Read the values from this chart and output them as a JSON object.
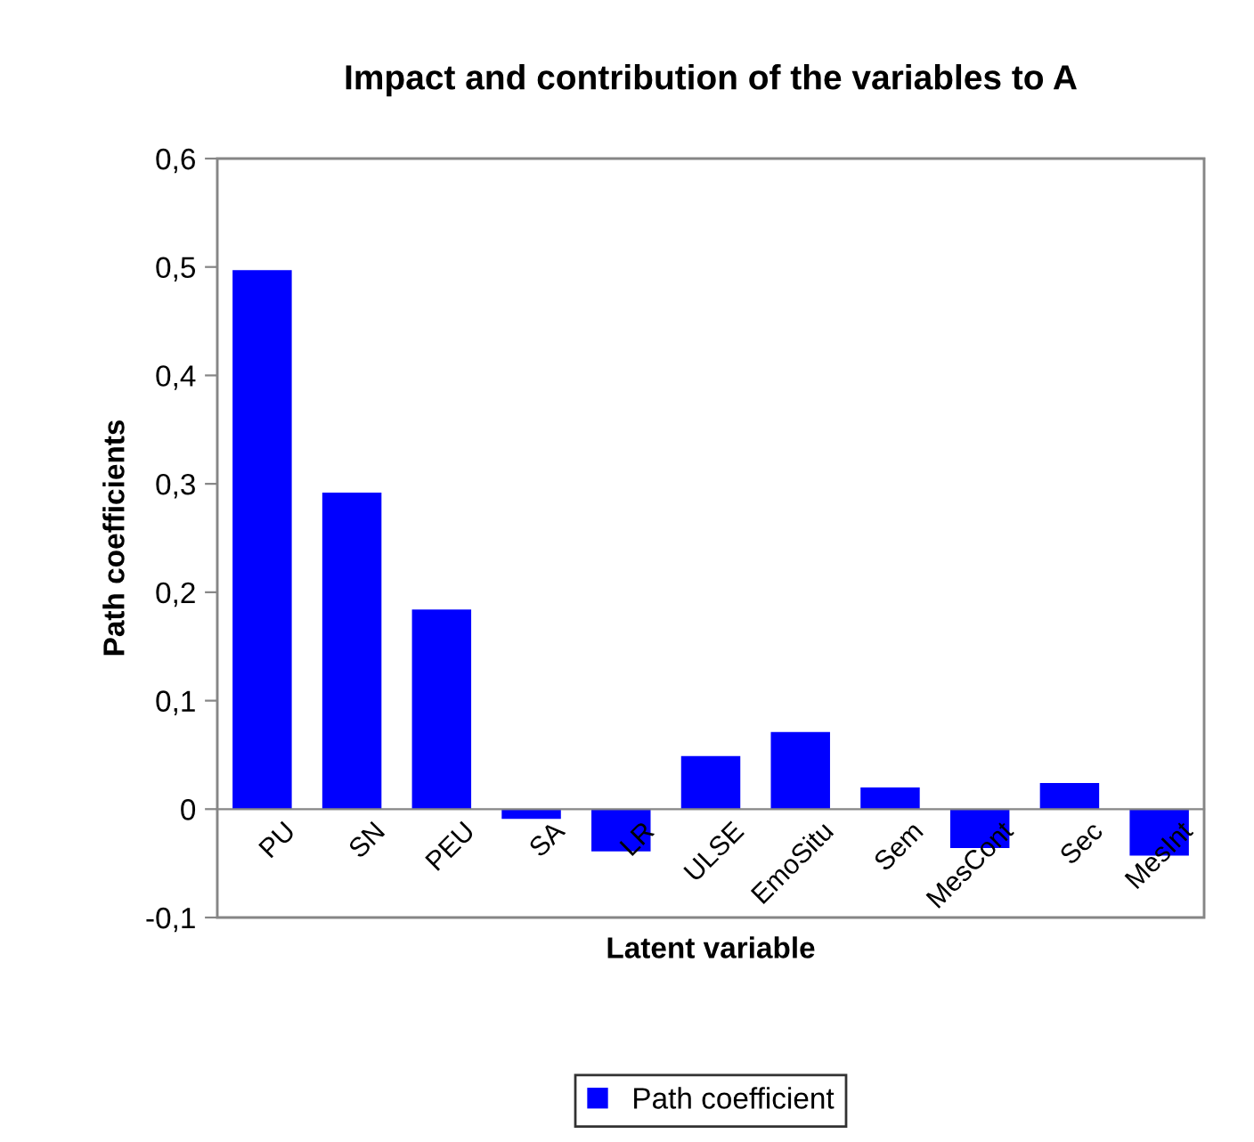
{
  "chart_data": {
    "type": "bar",
    "title": "Impact and contribution of the variables to A",
    "xlabel": "Latent variable",
    "ylabel": "Path coefficients",
    "categories": [
      "PU",
      "SN",
      "PEU",
      "SA",
      "LR",
      "ULSE",
      "EmoSitu",
      "Sem",
      "MesCont",
      "Sec",
      "MesInt"
    ],
    "series": [
      {
        "name": "Path coefficient",
        "color": "#0000ff",
        "values": [
          0.497,
          0.292,
          0.184,
          -0.009,
          -0.039,
          0.049,
          0.071,
          0.02,
          -0.036,
          0.024,
          -0.043
        ]
      }
    ],
    "ylim": [
      -0.1,
      0.6
    ],
    "yticks": [
      {
        "value": -0.1,
        "label": "-0,1"
      },
      {
        "value": 0,
        "label": "0"
      },
      {
        "value": 0.1,
        "label": "0,1"
      },
      {
        "value": 0.2,
        "label": "0,2"
      },
      {
        "value": 0.3,
        "label": "0,3"
      },
      {
        "value": 0.4,
        "label": "0,4"
      },
      {
        "value": 0.5,
        "label": "0,5"
      },
      {
        "value": 0.6,
        "label": "0,6"
      }
    ],
    "grid": false,
    "legend": "bottom"
  }
}
